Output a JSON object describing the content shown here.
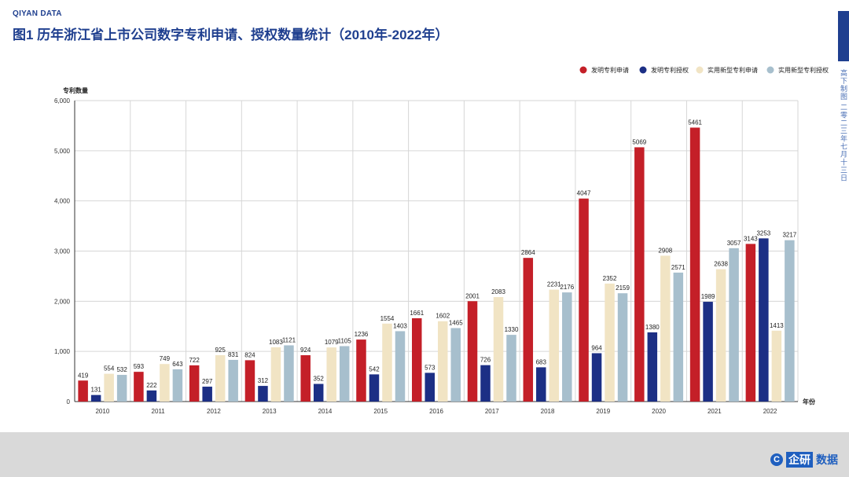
{
  "header": {
    "brand": "QIYAN DATA",
    "title": "图1 历年浙江省上市公司数字专利申请、授权数量统计（2010年-2022年）"
  },
  "side_note": "高下制图 二零二三年七月十三日",
  "footer": {
    "logo_mark": "C",
    "logo_name": "企研",
    "logo_suffix": "数据"
  },
  "colors": {
    "invention_apply": "#c41f28",
    "invention_grant": "#1c2f85",
    "utility_apply": "#f1e4c4",
    "utility_grant": "#a7bfcd",
    "axis": "#333333",
    "grid": "#d6d6d6"
  },
  "chart_data": {
    "type": "bar",
    "ylabel": "专利数量",
    "xlabel": "年份",
    "ylim": [
      0,
      6000
    ],
    "yticks": [
      "0",
      "1,000",
      "2,000",
      "3,000",
      "4,000",
      "5,000",
      "6,000"
    ],
    "grid": true,
    "legend_position": "top-right",
    "categories": [
      "2010",
      "2011",
      "2012",
      "2013",
      "2014",
      "2015",
      "2016",
      "2017",
      "2018",
      "2019",
      "2020",
      "2021",
      "2022"
    ],
    "series": [
      {
        "name": "发明专利申请",
        "color": "#c41f28",
        "values": [
          419,
          593,
          722,
          824,
          924,
          1236,
          1661,
          2001,
          2864,
          4047,
          5069,
          5461,
          3143
        ]
      },
      {
        "name": "发明专利授权",
        "color": "#1c2f85",
        "values": [
          131,
          222,
          297,
          312,
          352,
          542,
          573,
          726,
          683,
          964,
          1380,
          1989,
          3253
        ]
      },
      {
        "name": "实用新型专利申请",
        "color": "#f1e4c4",
        "values": [
          554,
          749,
          925,
          1083,
          1079,
          1554,
          1602,
          2083,
          2231,
          2352,
          2908,
          2638,
          1413
        ]
      },
      {
        "name": "实用新型专利授权",
        "color": "#a7bfcd",
        "values": [
          532,
          643,
          831,
          1121,
          1105,
          1403,
          1465,
          1330,
          2176,
          2159,
          2571,
          3057,
          3217
        ]
      }
    ]
  }
}
